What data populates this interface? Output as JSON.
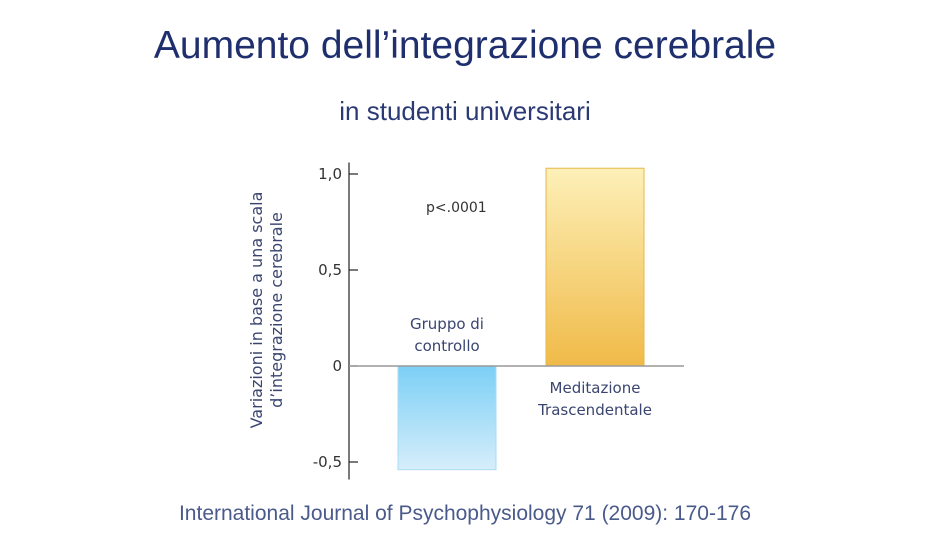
{
  "title": "Aumento dell’integrazione cerebrale",
  "subtitle": "in studenti universitari",
  "citation": "International Journal of Psychophysiology 71 (2009): 170-176",
  "chart_data": {
    "type": "bar",
    "categories": [
      "Gruppo di controllo",
      "Meditazione Trascendentale"
    ],
    "category_lines": [
      [
        "Gruppo di",
        "controllo"
      ],
      [
        "Meditazione",
        "Trascendentale"
      ]
    ],
    "values": [
      -0.54,
      1.03
    ],
    "colors": [
      "#8fd3f5",
      "#f0c050"
    ],
    "ylabel_lines": [
      "Variazioni in base a una scala",
      "d’integrazione cerebrale"
    ],
    "yticks": [
      1.0,
      0.5,
      0,
      -0.5
    ],
    "ytick_labels": [
      "1,0",
      "0,5",
      "0",
      "-0,5"
    ],
    "ylim": [
      -0.56,
      1.06
    ],
    "annotation": "p<.0001",
    "grid": false
  }
}
